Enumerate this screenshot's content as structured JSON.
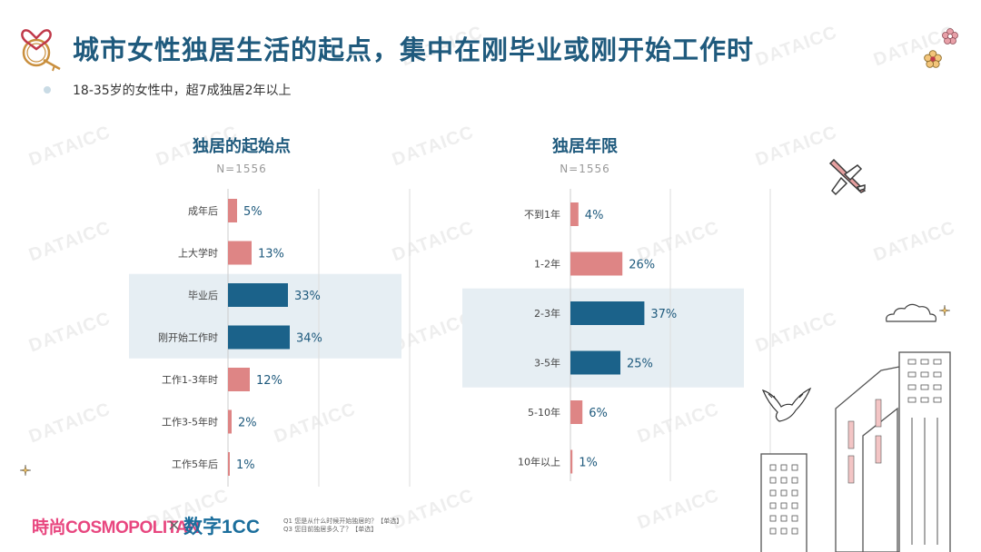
{
  "header": {
    "title": "城市女性独居生活的起点，集中在刚毕业或刚开始工作时",
    "subtitle": "18-35岁的女性中，超7成独居2年以上"
  },
  "chart_data": [
    {
      "type": "bar",
      "orientation": "horizontal",
      "title": "独居的起始点",
      "subtitle": "N=1556",
      "categories": [
        "成年后",
        "上大学时",
        "毕业后",
        "刚开始工作时",
        "工作1-3年时",
        "工作3-5年时",
        "工作5年后"
      ],
      "values": [
        5,
        13,
        33,
        34,
        12,
        2,
        1
      ],
      "value_labels": [
        "5%",
        "13%",
        "33%",
        "34%",
        "12%",
        "2%",
        "1%"
      ],
      "highlighted": [
        false,
        false,
        true,
        true,
        false,
        false,
        false
      ],
      "xlim": [
        0,
        50
      ]
    },
    {
      "type": "bar",
      "orientation": "horizontal",
      "title": "独居年限",
      "subtitle": "N=1556",
      "categories": [
        "不到1年",
        "1-2年",
        "2-3年",
        "3-5年",
        "5-10年",
        "10年以上"
      ],
      "values": [
        4,
        26,
        37,
        25,
        6,
        1
      ],
      "value_labels": [
        "4%",
        "26%",
        "37%",
        "25%",
        "6%",
        "1%"
      ],
      "highlighted": [
        false,
        false,
        true,
        true,
        false,
        false
      ],
      "xlim": [
        0,
        55
      ]
    }
  ],
  "colors": {
    "highlight_bar": "#1b628a",
    "normal_bar": "#de8585",
    "highlight_band": "#e6eef3",
    "title": "#1f5a7d"
  },
  "footer": {
    "note1": "Q1 您是从什么时候开始独居的？【单选】",
    "note2": "Q3 您目前独居多久了？【单选】",
    "brand_left": "時尚COSMOPOLITAN",
    "brand_sep": "×",
    "brand_right": "数字1CC"
  },
  "watermark": "DATAICC",
  "icons": [
    "logo-knot-icon",
    "flower-icon",
    "plane-icon",
    "cloud-icon",
    "bird-icon",
    "sparkle-icon",
    "building-icon"
  ]
}
